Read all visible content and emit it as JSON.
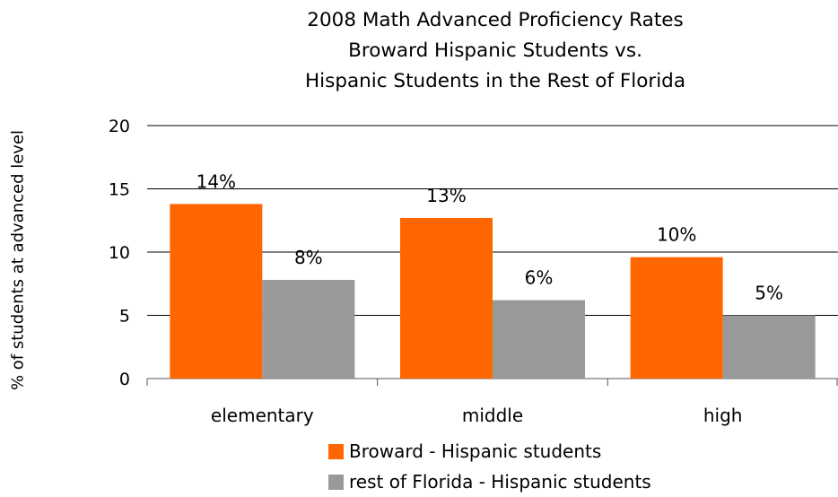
{
  "chart_data": {
    "type": "bar",
    "title": "2008 Math Advanced Proficiency Rates Broward Hispanic Students vs. Hispanic Students in the Rest of Florida",
    "title_lines": [
      "2008 Math Advanced Proficiency Rates",
      "Broward Hispanic Students vs.",
      "Hispanic Students in the Rest of Florida"
    ],
    "xlabel": "",
    "ylabel": "% of students at advanced level",
    "ylim": [
      0,
      20
    ],
    "yticks": [
      0,
      5,
      10,
      15,
      20
    ],
    "grid": true,
    "legend_position": "bottom",
    "categories": [
      "elementary",
      "middle",
      "high"
    ],
    "series": [
      {
        "name": "Broward - Hispanic students",
        "color": "#ff6600",
        "values": [
          13.8,
          12.7,
          9.6
        ],
        "labels": [
          "14%",
          "13%",
          "10%"
        ]
      },
      {
        "name": "rest of Florida - Hispanic students",
        "color": "#999999",
        "values": [
          7.8,
          6.2,
          5.0
        ],
        "labels": [
          "8%",
          "6%",
          "5%"
        ]
      }
    ]
  }
}
